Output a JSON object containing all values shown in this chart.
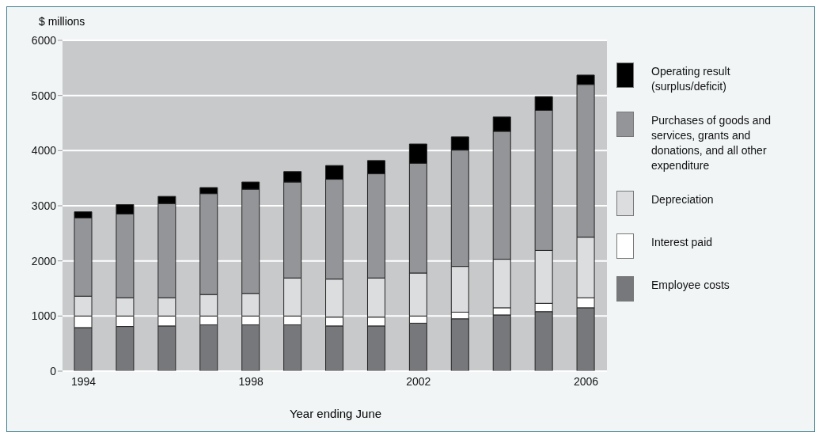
{
  "chart_data": {
    "type": "bar",
    "stacked": true,
    "ylabel": "$ millions",
    "xlabel": "Year ending June",
    "categories": [
      "1994",
      null,
      null,
      null,
      "1998",
      null,
      null,
      null,
      "2002",
      null,
      null,
      null,
      "2006"
    ],
    "series": [
      {
        "name": "Employee costs",
        "color": "#77787b",
        "values": [
          790,
          810,
          820,
          840,
          840,
          840,
          820,
          820,
          870,
          950,
          1020,
          1080,
          1150
        ]
      },
      {
        "name": "Interest paid",
        "color": "#ffffff",
        "values": [
          210,
          190,
          180,
          160,
          160,
          160,
          160,
          160,
          130,
          120,
          130,
          150,
          180
        ]
      },
      {
        "name": "Depreciation",
        "color": "#dcdddf",
        "values": [
          360,
          330,
          330,
          390,
          410,
          690,
          690,
          710,
          780,
          830,
          880,
          960,
          1100
        ]
      },
      {
        "name": "Purchases of goods and services, grants and donations, and all other expenditure",
        "color": "#939598",
        "values": [
          1420,
          1520,
          1710,
          1830,
          1890,
          1740,
          1810,
          1890,
          1990,
          2110,
          2320,
          2540,
          2770
        ]
      },
      {
        "name": "Operating result (surplus/deficit)",
        "color": "#000000",
        "values": [
          110,
          170,
          130,
          110,
          130,
          190,
          250,
          240,
          350,
          240,
          260,
          250,
          170
        ]
      }
    ],
    "ylim": [
      0,
      6000
    ],
    "yticks": [
      0,
      1000,
      2000,
      3000,
      4000,
      5000,
      6000
    ],
    "grid": "y",
    "legend": "right"
  }
}
